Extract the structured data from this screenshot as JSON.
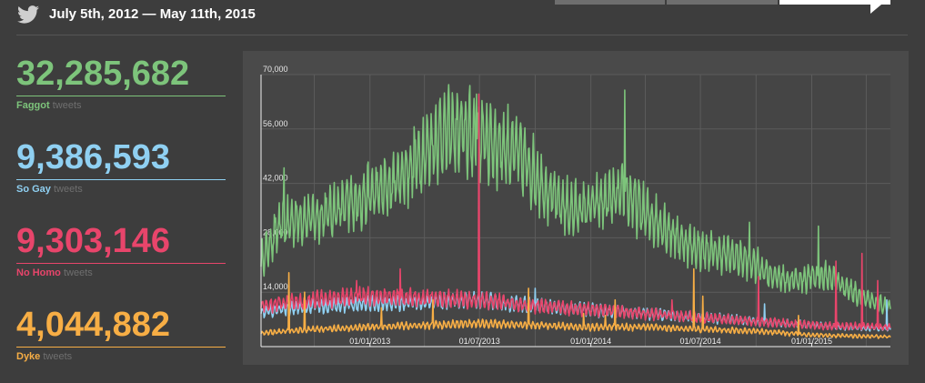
{
  "header": {
    "date_range": "July 5th, 2012 — May 11th, 2015",
    "icon": "twitter-bird-icon"
  },
  "tabs": [
    {
      "label": "",
      "active": false
    },
    {
      "label": "",
      "active": false
    },
    {
      "label": "",
      "active": true
    }
  ],
  "stats": [
    {
      "number": "32,285,682",
      "term": "Faggot",
      "unit": "tweets",
      "color": "#7dc47b"
    },
    {
      "number": "9,386,593",
      "term": "So Gay",
      "unit": "tweets",
      "color": "#8fd0f2"
    },
    {
      "number": "9,303,146",
      "term": "No Homo",
      "unit": "tweets",
      "color": "#e8456b"
    },
    {
      "number": "4,044,882",
      "term": "Dyke",
      "unit": "tweets",
      "color": "#f7ae45"
    }
  ],
  "chart_data": {
    "type": "line",
    "title": "",
    "xlabel": "",
    "ylabel": "",
    "x_start": "2012-07-05",
    "x_end": "2015-05-11",
    "ylim": [
      0,
      70000
    ],
    "y_ticks": [
      "0",
      "14,000",
      "28,000",
      "42,000",
      "56,000",
      "70,000"
    ],
    "x_ticks": [
      {
        "label": "01/01/2013",
        "date": "2013-01-01"
      },
      {
        "label": "01/07/2013",
        "date": "2013-07-01"
      },
      {
        "label": "01/01/2014",
        "date": "2014-01-01"
      },
      {
        "label": "01/07/2014",
        "date": "2014-07-01"
      },
      {
        "label": "01/01/2015",
        "date": "2015-01-01"
      }
    ],
    "grid": true,
    "series": [
      {
        "name": "Faggot",
        "color": "#7dc47b",
        "points": [
          [
            "2012-07-05",
            22000
          ],
          [
            "2012-08-01",
            30000
          ],
          [
            "2012-09-01",
            33000
          ],
          [
            "2012-10-01",
            33000
          ],
          [
            "2012-11-01",
            35000
          ],
          [
            "2012-12-01",
            37000
          ],
          [
            "2013-01-01",
            39000
          ],
          [
            "2013-02-01",
            41000
          ],
          [
            "2013-03-01",
            45000
          ],
          [
            "2013-04-01",
            50000
          ],
          [
            "2013-05-01",
            55000
          ],
          [
            "2013-06-01",
            55000
          ],
          [
            "2013-07-01",
            54000
          ],
          [
            "2013-08-01",
            52000
          ],
          [
            "2013-09-01",
            50000
          ],
          [
            "2013-10-01",
            44000
          ],
          [
            "2013-11-01",
            38000
          ],
          [
            "2013-12-01",
            35000
          ],
          [
            "2014-01-01",
            36000
          ],
          [
            "2014-02-01",
            38000
          ],
          [
            "2014-03-01",
            39000
          ],
          [
            "2014-04-01",
            34000
          ],
          [
            "2014-05-01",
            31000
          ],
          [
            "2014-06-01",
            27000
          ],
          [
            "2014-07-01",
            25000
          ],
          [
            "2014-08-01",
            24000
          ],
          [
            "2014-09-01",
            23000
          ],
          [
            "2014-10-01",
            21000
          ],
          [
            "2014-11-01",
            18000
          ],
          [
            "2014-12-01",
            17000
          ],
          [
            "2015-01-01",
            18000
          ],
          [
            "2015-02-01",
            18000
          ],
          [
            "2015-03-01",
            15000
          ],
          [
            "2015-04-01",
            12000
          ],
          [
            "2015-05-11",
            10000
          ]
        ],
        "spikes": [
          [
            "2012-08-12",
            46000
          ],
          [
            "2013-05-18",
            63000
          ],
          [
            "2013-06-26",
            65000
          ],
          [
            "2014-02-26",
            66000
          ],
          [
            "2014-09-20",
            32000
          ],
          [
            "2015-01-12",
            31000
          ]
        ]
      },
      {
        "name": "So Gay",
        "color": "#8fd0f2",
        "points": [
          [
            "2012-07-05",
            9000
          ],
          [
            "2012-10-01",
            10500
          ],
          [
            "2013-01-01",
            11000
          ],
          [
            "2013-04-01",
            11500
          ],
          [
            "2013-07-01",
            12000
          ],
          [
            "2013-10-01",
            10500
          ],
          [
            "2014-01-01",
            9500
          ],
          [
            "2014-04-01",
            8500
          ],
          [
            "2014-07-01",
            7500
          ],
          [
            "2014-10-01",
            6500
          ],
          [
            "2015-01-01",
            5500
          ],
          [
            "2015-05-11",
            4500
          ]
        ],
        "spikes": [
          [
            "2013-10-01",
            15000
          ],
          [
            "2014-10-15",
            11000
          ],
          [
            "2015-05-05",
            12000
          ]
        ]
      },
      {
        "name": "No Homo",
        "color": "#e8456b",
        "points": [
          [
            "2012-07-05",
            10500
          ],
          [
            "2012-10-01",
            12000
          ],
          [
            "2013-01-01",
            13000
          ],
          [
            "2013-04-01",
            12500
          ],
          [
            "2013-07-01",
            12000
          ],
          [
            "2013-10-01",
            10500
          ],
          [
            "2014-01-01",
            9500
          ],
          [
            "2014-04-01",
            8500
          ],
          [
            "2014-07-01",
            7500
          ],
          [
            "2014-10-01",
            6500
          ],
          [
            "2015-01-01",
            5500
          ],
          [
            "2015-05-11",
            5000
          ]
        ],
        "spikes": [
          [
            "2012-12-10",
            17000
          ],
          [
            "2013-02-20",
            20000
          ],
          [
            "2013-06-30",
            65000
          ],
          [
            "2014-05-15",
            12000
          ],
          [
            "2014-10-05",
            18000
          ],
          [
            "2015-02-10",
            22000
          ],
          [
            "2015-03-25",
            24000
          ],
          [
            "2015-04-20",
            17000
          ]
        ]
      },
      {
        "name": "Dyke",
        "color": "#f7ae45",
        "points": [
          [
            "2012-07-05",
            3500
          ],
          [
            "2012-10-01",
            4500
          ],
          [
            "2013-01-01",
            5000
          ],
          [
            "2013-04-01",
            5500
          ],
          [
            "2013-07-01",
            6000
          ],
          [
            "2013-10-01",
            5500
          ],
          [
            "2014-01-01",
            5000
          ],
          [
            "2014-04-01",
            5000
          ],
          [
            "2014-07-01",
            4500
          ],
          [
            "2014-10-01",
            4000
          ],
          [
            "2015-01-01",
            3000
          ],
          [
            "2015-05-11",
            2500
          ]
        ],
        "spikes": [
          [
            "2012-08-20",
            19000
          ],
          [
            "2012-09-15",
            14000
          ],
          [
            "2013-01-20",
            10000
          ],
          [
            "2013-04-15",
            12000
          ],
          [
            "2013-09-20",
            15000
          ],
          [
            "2013-12-20",
            8500
          ],
          [
            "2014-01-25",
            8000
          ],
          [
            "2014-02-10",
            12000
          ],
          [
            "2014-06-20",
            20000
          ],
          [
            "2014-07-05",
            13000
          ],
          [
            "2014-12-10",
            8000
          ]
        ]
      }
    ]
  }
}
